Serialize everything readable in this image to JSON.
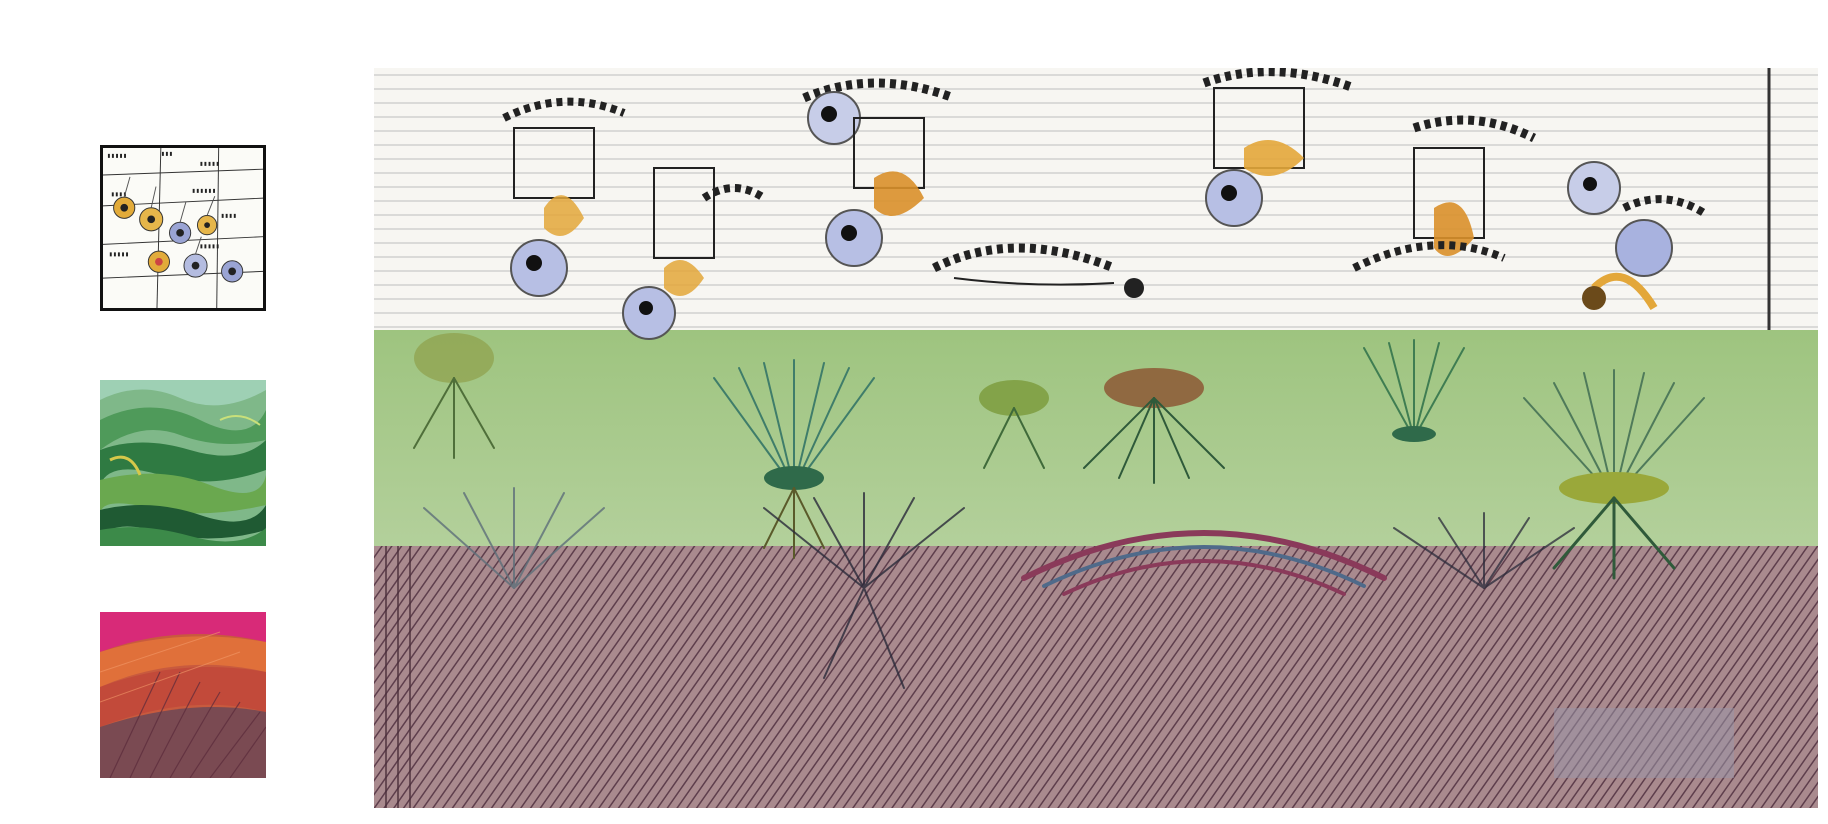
{
  "thumbnails": [
    {
      "id": "sketch",
      "icon": "sketch-style-thumbnail"
    },
    {
      "id": "landscape",
      "icon": "green-layers-style-thumbnail"
    },
    {
      "id": "strokes",
      "icon": "pink-strokes-style-thumbnail"
    }
  ],
  "colors": {
    "band_sketch": "#f7f6f2",
    "band_green": "#a9c98f",
    "band_pink": "#a98a8e",
    "ink": "#1d1d1f",
    "accent_orange": "#d9902a",
    "accent_blue": "#8e9ad0",
    "plant_green": "#3f7d52",
    "thumb_green_dark": "#1f5a33",
    "thumb_pink": "#d82a78",
    "thumb_orange": "#d86a3a"
  }
}
